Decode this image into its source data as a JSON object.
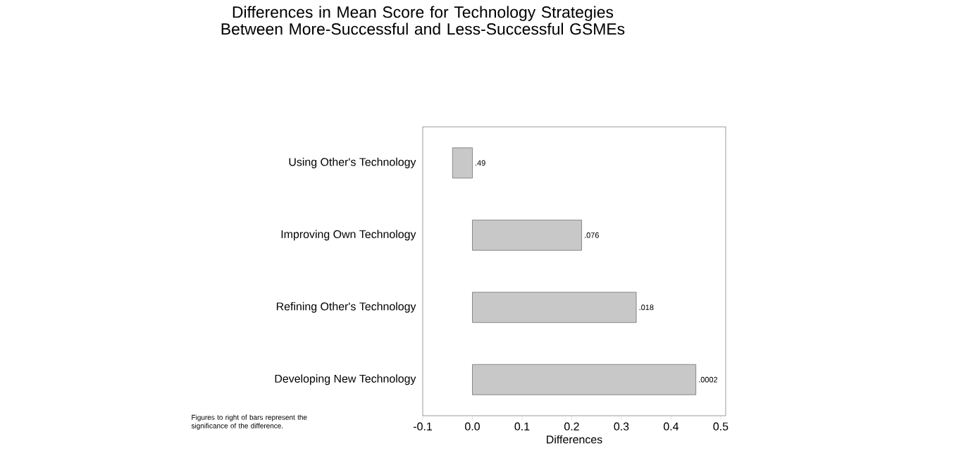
{
  "chart_data": {
    "type": "bar",
    "orientation": "horizontal",
    "title": "Differences in Mean Score for Technology Strategies Between More-Successful and Less-Successful GSMEs",
    "xlabel": "Differences",
    "categories": [
      "Using Other's Technology",
      "Improving Own Technology",
      "Refining Other's Technology",
      "Developing New Technology"
    ],
    "values": [
      -0.04,
      0.22,
      0.33,
      0.45
    ],
    "color": "#c8c8c8",
    "xlim": [
      -0.1,
      0.51
    ],
    "xticks": [
      {
        "value": -0.1,
        "label": "-0.1"
      },
      {
        "value": 0,
        "label": "0.0"
      },
      {
        "value": 0.1,
        "label": "0.1"
      },
      {
        "value": 0.2,
        "label": "0.2"
      },
      {
        "value": 0.3,
        "label": "0.3"
      },
      {
        "value": 0.4,
        "label": "0.4"
      },
      {
        "value": 0.5,
        "label": "0.5"
      }
    ],
    "annotations": [
      {
        "text": ".49",
        "x": 0,
        "y": "Using Other's Technology"
      },
      {
        "text": ".076",
        "x": 0.22,
        "y": "Improving Own Technology"
      },
      {
        "text": ".018",
        "x": 0.33,
        "y": "Refining Other's Technology"
      },
      {
        "text": ".0002",
        "x": 0.45,
        "y": "Developing New Technology"
      },
      "Figures to right of bars represent the significance of the difference."
    ]
  }
}
